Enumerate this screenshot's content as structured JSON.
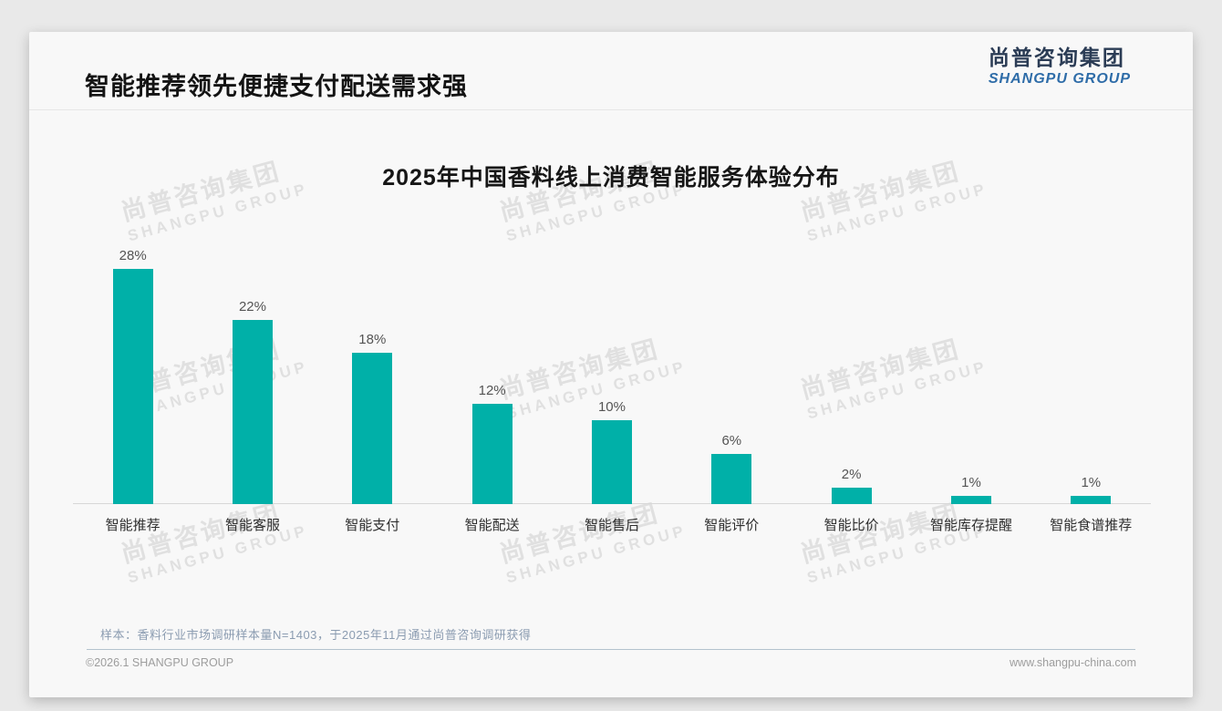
{
  "page": {
    "title": "智能推荐领先便捷支付配送需求强",
    "logo": {
      "cn": "尚普咨询集团",
      "en": "SHANGPU GROUP"
    },
    "watermark": {
      "line1": "尚普咨询集团",
      "line2": "SHANGPU GROUP"
    },
    "note": "样本：香料行业市场调研样本量N=1403，于2025年11月通过尚普咨询调研获得",
    "footer": {
      "left": "©2026.1 SHANGPU GROUP",
      "right": "www.shangpu-china.com"
    }
  },
  "colors": {
    "bar": "#00b0a8",
    "logo_cn": "#2b3c55",
    "logo_en": "#2e6ca8",
    "note_text": "#8b9cb1",
    "watermark": "#e0e0e0"
  },
  "chart_data": {
    "type": "bar",
    "title": "2025年中国香料线上消费智能服务体验分布",
    "categories": [
      "智能推荐",
      "智能客服",
      "智能支付",
      "智能配送",
      "智能售后",
      "智能评价",
      "智能比价",
      "智能库存提醒",
      "智能食谱推荐"
    ],
    "values": [
      28,
      22,
      18,
      12,
      10,
      6,
      2,
      1,
      1
    ],
    "unit": "%",
    "bar_color": "#00b0a8",
    "value_labels": [
      "28%",
      "22%",
      "18%",
      "12%",
      "10%",
      "6%",
      "2%",
      "1%",
      "1%"
    ],
    "xlabel": "",
    "ylabel": "",
    "ylim": [
      0,
      30
    ],
    "grid": false,
    "legend": false
  }
}
